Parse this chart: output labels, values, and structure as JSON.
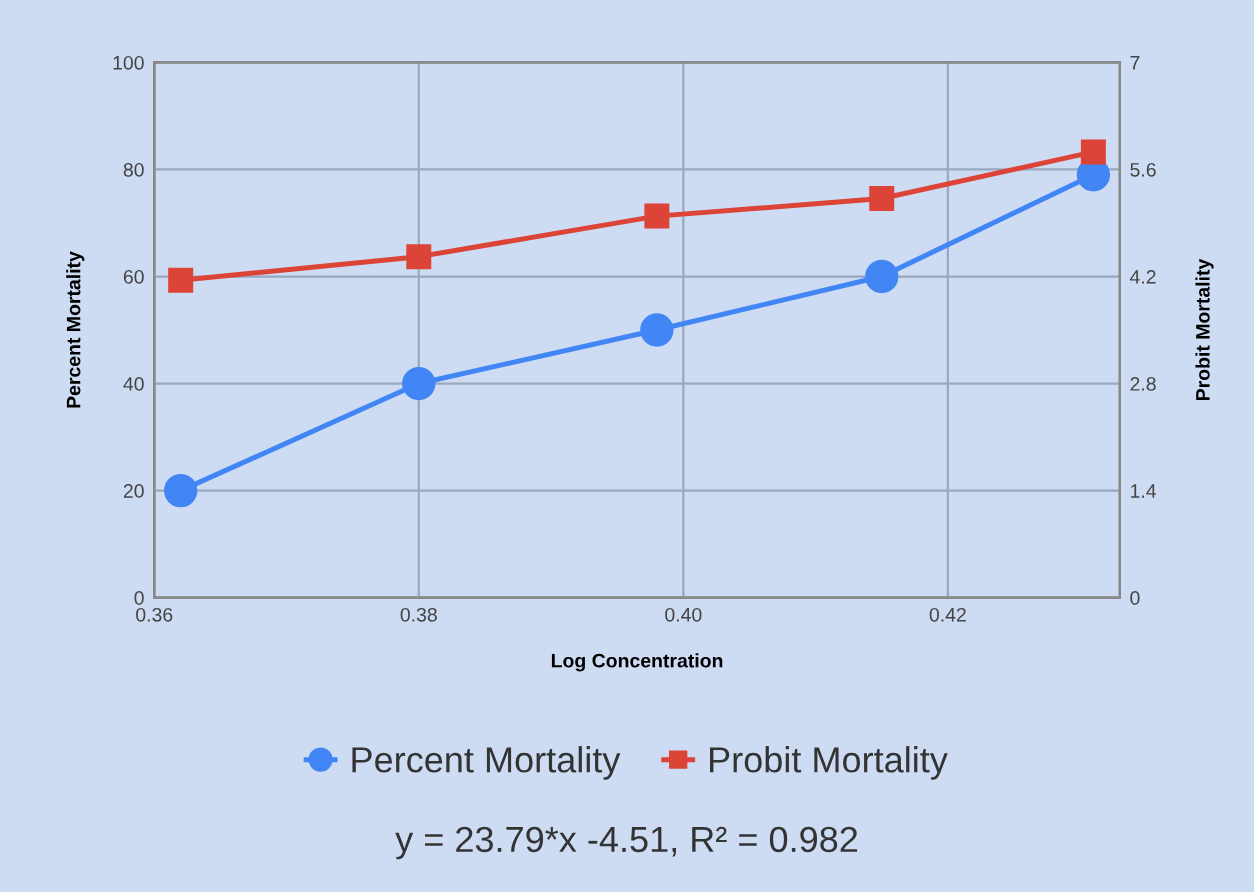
{
  "chart_data": {
    "type": "line",
    "xlabel": "Log Concentration",
    "ylabel": "Percent Mortality",
    "y2label": "Probit Mortality",
    "x": [
      0.362,
      0.38,
      0.398,
      0.415,
      0.431
    ],
    "series": [
      {
        "name": "Percent Mortality",
        "color": "#4285f4",
        "values": [
          20,
          40,
          50,
          60,
          79
        ],
        "marker": "circle"
      },
      {
        "name": "Probit Mortality",
        "color": "#db4437",
        "values": [
          4.15,
          4.46,
          4.99,
          5.22,
          5.83
        ],
        "axis": "y2",
        "marker": "square"
      }
    ],
    "xlim": [
      0.36,
      0.433
    ],
    "xticks": [
      {
        "value": 0.36,
        "label": "0.36"
      },
      {
        "value": 0.38,
        "label": "0.38"
      },
      {
        "value": 0.4,
        "label": "0.40"
      },
      {
        "value": 0.42,
        "label": "0.42"
      }
    ],
    "ylim": [
      0,
      100
    ],
    "yticks": [
      0,
      20,
      40,
      60,
      80,
      100
    ],
    "y2lim": [
      0,
      7
    ],
    "y2ticks": [
      0,
      1.4,
      2.8,
      4.2,
      5.6,
      7
    ],
    "grid": true,
    "legend": "bottom",
    "annotations": [
      "y = 23.79*x -4.51, R² = 0.982"
    ]
  }
}
